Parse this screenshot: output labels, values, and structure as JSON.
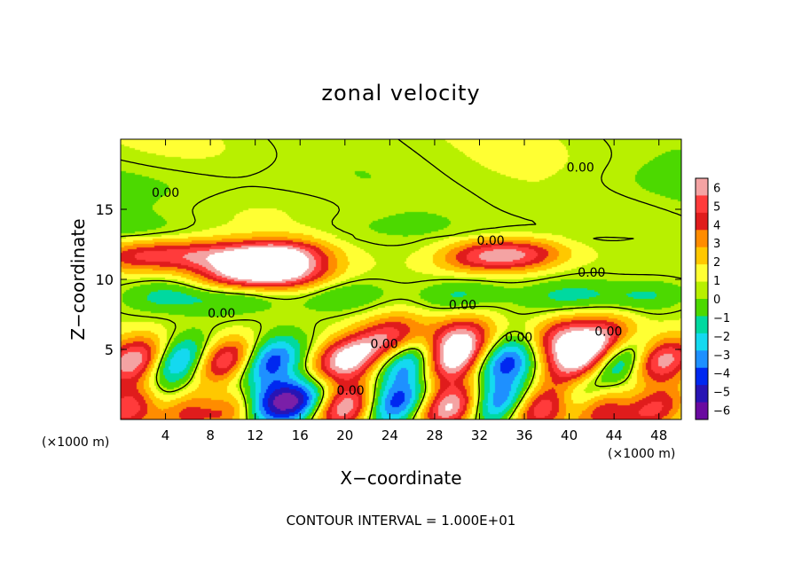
{
  "chart_data": {
    "type": "heatmap",
    "title": "zonal velocity",
    "xlabel": "X−coordinate",
    "ylabel": "Z−coordinate",
    "x_unit_left": "(×1000 m)",
    "x_unit_right": "(×1000 m)",
    "x_ticks": [
      4,
      8,
      12,
      16,
      20,
      24,
      28,
      32,
      36,
      40,
      44,
      48
    ],
    "y_ticks": [
      5,
      10,
      15
    ],
    "xlim": [
      0,
      50
    ],
    "ylim": [
      0,
      20
    ],
    "contour_label": "0.00",
    "contour_interval_text": "CONTOUR INTERVAL = 1.000E+01",
    "colorbar": {
      "ticks": [
        "6",
        "5",
        "4",
        "3",
        "2",
        "1",
        "0",
        "−1",
        "−2",
        "−3",
        "−4",
        "−5",
        "−6"
      ],
      "colors": [
        "#f4a3a3",
        "#ff3b3b",
        "#e01c1c",
        "#ff8c00",
        "#ffc800",
        "#ffff33",
        "#b8f000",
        "#4cd900",
        "#00d9a0",
        "#14d9f0",
        "#1e90ff",
        "#0028f0",
        "#2814b4",
        "#6a0aa0"
      ]
    },
    "wave_rows": [
      {
        "z": 4.2,
        "amp": 6.5,
        "centers": [
          1.5,
          9.5,
          20,
          29.5,
          41,
          48
        ]
      },
      {
        "z": 4.2,
        "amp": -5.5,
        "centers": [
          5,
          13,
          26,
          34.5,
          44.5
        ]
      },
      {
        "z": 0.9,
        "amp": 7,
        "centers": [
          1.4,
          6,
          10,
          20,
          29.5,
          38,
          43,
          47
        ]
      },
      {
        "z": 1.2,
        "amp": -5.5,
        "centers": [
          3.5,
          8,
          12.5,
          16,
          24.5,
          33.5,
          40.5,
          45.5
        ]
      },
      {
        "z": 11.7,
        "amp": 3.8,
        "centers": [
          1.5,
          7,
          12,
          15,
          32,
          36
        ]
      },
      {
        "z": 10.3,
        "amp": 4.5,
        "centers": [
          10.5,
          15
        ]
      },
      {
        "z": 5.8,
        "amp": 4.5,
        "centers": [
          24,
          30,
          39,
          43
        ]
      },
      {
        "z": 8.8,
        "amp": -1.8,
        "centers": [
          4,
          10.5,
          20,
          30,
          40,
          47
        ]
      }
    ]
  }
}
